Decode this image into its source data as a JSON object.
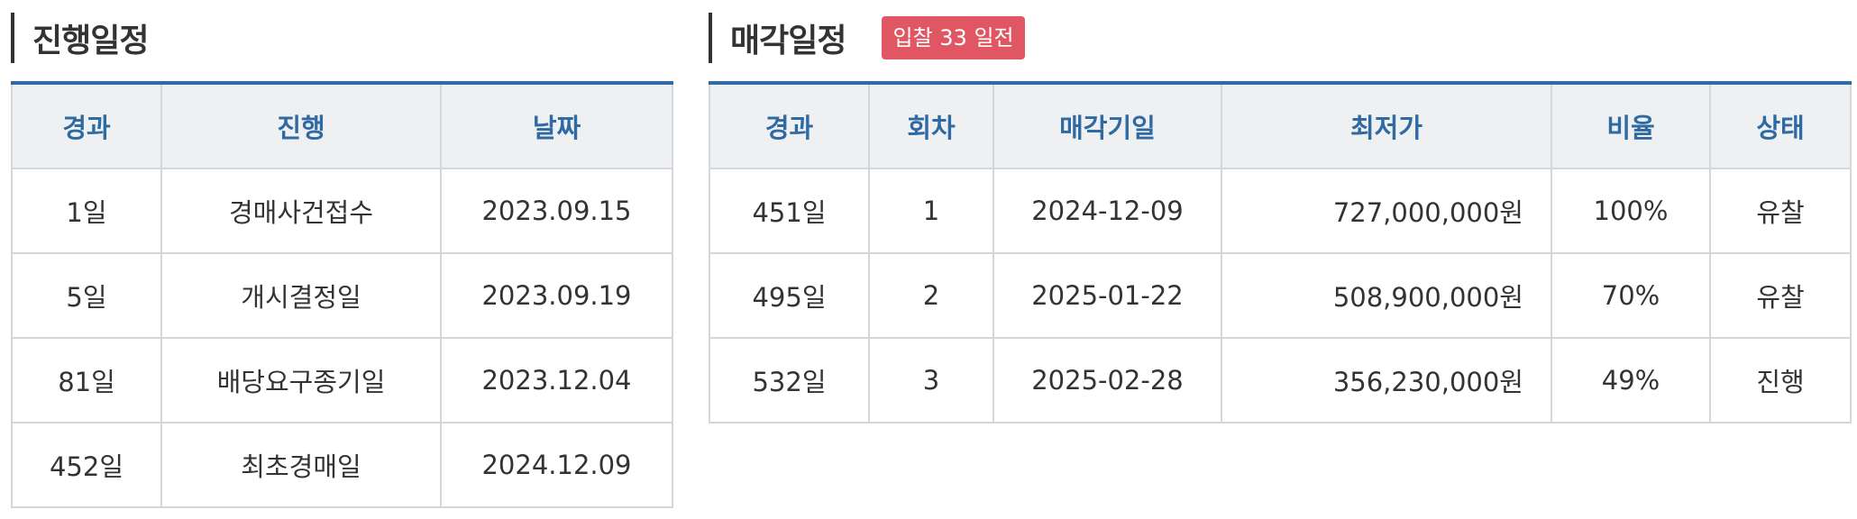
{
  "progress": {
    "title": "진행일정",
    "headers": [
      "경과",
      "진행",
      "날짜"
    ],
    "rows": [
      {
        "elapsed": "1일",
        "step": "경매사건접수",
        "date": "2023.09.15"
      },
      {
        "elapsed": "5일",
        "step": "개시결정일",
        "date": "2023.09.19"
      },
      {
        "elapsed": "81일",
        "step": "배당요구종기일",
        "date": "2023.12.04"
      },
      {
        "elapsed": "452일",
        "step": "최초경매일",
        "date": "2024.12.09"
      }
    ]
  },
  "sale": {
    "title": "매각일정",
    "badge": "입찰 33 일전",
    "colors": {
      "accent": "#2f6aa3",
      "badge": "#e05763"
    },
    "headers": [
      "경과",
      "회차",
      "매각기일",
      "최저가",
      "비율",
      "상태"
    ],
    "rows": [
      {
        "elapsed": "451일",
        "round": "1",
        "date": "2024-12-09",
        "min_price": "727,000,000원",
        "ratio": "100%",
        "status": "유찰"
      },
      {
        "elapsed": "495일",
        "round": "2",
        "date": "2025-01-22",
        "min_price": "508,900,000원",
        "ratio": "70%",
        "status": "유찰"
      },
      {
        "elapsed": "532일",
        "round": "3",
        "date": "2025-02-28",
        "min_price": "356,230,000원",
        "ratio": "49%",
        "status": "진행"
      }
    ]
  }
}
